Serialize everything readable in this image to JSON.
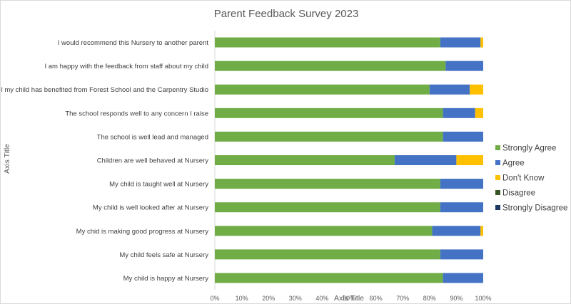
{
  "chart_data": {
    "type": "bar",
    "orientation": "horizontal",
    "stacked": "percent",
    "title": "Parent Feedback Survey 2023",
    "xlabel": "Axis Title",
    "ylabel": "Axis Title",
    "xlim": [
      0,
      100
    ],
    "x_ticks": [
      "0%",
      "10%",
      "20%",
      "30%",
      "40%",
      "50%",
      "60%",
      "70%",
      "80%",
      "90%",
      "100%"
    ],
    "grid": false,
    "legend_position": "right",
    "categories": [
      "I would recommend this Nursery to another parent",
      "I am happy with the feedback from staff about my child",
      "I feel my child has benefited from Forest School and the Carpentry Studio",
      "The school responds well to any concern I raise",
      "The school is well lead and managed",
      "Children are well behaved at Nursery",
      "My child is taught well at Nursery",
      "My child is well looked after at Nursery",
      "My chid is making good progress at Nursery",
      "My child feels safe at Nursery",
      "My child is happy at Nursery"
    ],
    "series": [
      {
        "name": "Strongly Agree",
        "color": "#70ad47",
        "values": [
          84,
          86,
          80,
          85,
          85,
          67,
          84,
          84,
          81,
          84,
          85
        ]
      },
      {
        "name": "Agree",
        "color": "#4472c4",
        "values": [
          15,
          14,
          15,
          12,
          15,
          23,
          16,
          16,
          18,
          16,
          15
        ]
      },
      {
        "name": "Don't Know",
        "color": "#ffc000",
        "values": [
          1,
          0,
          5,
          3,
          0,
          10,
          0,
          0,
          1,
          0,
          0
        ]
      },
      {
        "name": "Disagree",
        "color": "#375623",
        "values": [
          0,
          0,
          0,
          0,
          0,
          0,
          0,
          0,
          0,
          0,
          0
        ]
      },
      {
        "name": "Strongly Disagree",
        "color": "#203864",
        "values": [
          0,
          0,
          0,
          0,
          0,
          0,
          0,
          0,
          0,
          0,
          0
        ]
      }
    ]
  }
}
